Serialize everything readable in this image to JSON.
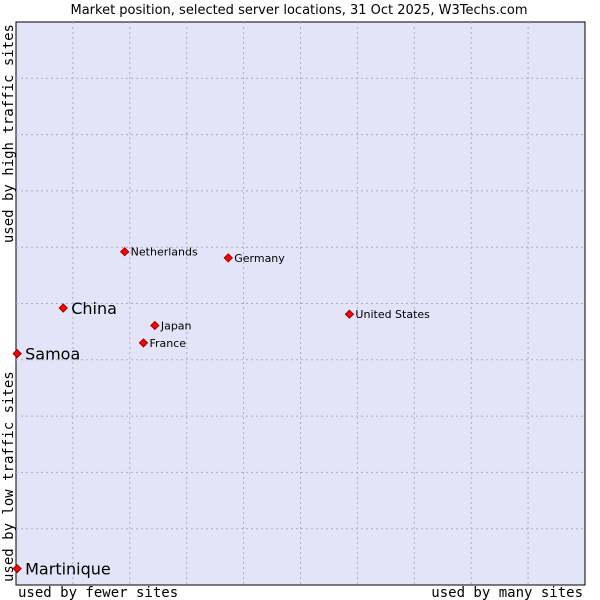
{
  "chart_data": {
    "type": "scatter",
    "title": "Market position, selected server locations, 31 Oct 2025, W3Techs.com",
    "xlabel_left": "used by fewer sites",
    "xlabel_right": "used by many sites",
    "ylabel_bottom": "used by low traffic sites",
    "ylabel_top": "used by high traffic sites",
    "xlim": [
      0,
      100
    ],
    "ylim": [
      0,
      100
    ],
    "grid": true,
    "points": [
      {
        "label": "Netherlands",
        "x": 19.1,
        "y": 59.2,
        "size": "small"
      },
      {
        "label": "Germany",
        "x": 37.3,
        "y": 58.1,
        "size": "small"
      },
      {
        "label": "China",
        "x": 8.3,
        "y": 49.2,
        "size": "large"
      },
      {
        "label": "United States",
        "x": 58.6,
        "y": 48.1,
        "size": "small"
      },
      {
        "label": "Japan",
        "x": 24.4,
        "y": 46.1,
        "size": "small"
      },
      {
        "label": "France",
        "x": 22.4,
        "y": 43.0,
        "size": "small"
      },
      {
        "label": "Samoa",
        "x": 0.2,
        "y": 41.1,
        "size": "large"
      },
      {
        "label": "Martinique",
        "x": 0.2,
        "y": 2.9,
        "size": "large"
      }
    ]
  }
}
